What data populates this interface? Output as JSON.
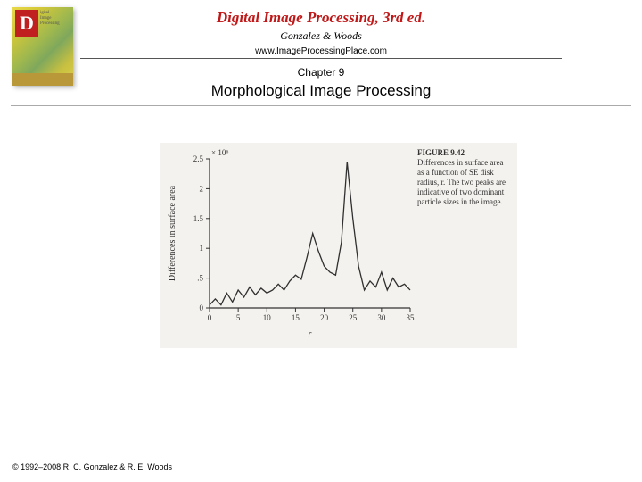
{
  "header": {
    "title": "Digital Image Processing, 3rd ed.",
    "authors": "Gonzalez & Woods",
    "url": "www.ImageProcessingPlace.com",
    "chapter": "Chapter 9",
    "subtitle": "Morphological Image Processing"
  },
  "cover": {
    "letter": "D",
    "small1": "igital",
    "small2": "Image",
    "small3": "Processing"
  },
  "figure": {
    "type": "line",
    "fignum": "FIGURE 9.42",
    "caption_text": "Differences in surface area as a function of SE disk radius, r. The two peaks are indicative of two dominant particle sizes in the image.",
    "ylabel": "Differences in surface area",
    "xlabel": "r",
    "y_multiplier": "× 10⁶",
    "xlim": [
      0,
      35
    ],
    "ylim": [
      0,
      2.5
    ],
    "xticks": [
      0,
      5,
      10,
      15,
      20,
      25,
      30,
      35
    ],
    "yticks": [
      0,
      0.5,
      1,
      1.5,
      2,
      2.5
    ],
    "ytick_labels": [
      "0",
      ".5",
      "1",
      "1.5",
      "2",
      "2.5"
    ],
    "line_color": "#303030",
    "axis_color": "#333333",
    "background_color": "#f4f2ee",
    "tick_fontsize": 9,
    "label_fontsize": 10,
    "data": [
      {
        "x": 0,
        "y": 0.05
      },
      {
        "x": 1,
        "y": 0.15
      },
      {
        "x": 2,
        "y": 0.05
      },
      {
        "x": 3,
        "y": 0.25
      },
      {
        "x": 4,
        "y": 0.1
      },
      {
        "x": 5,
        "y": 0.3
      },
      {
        "x": 6,
        "y": 0.18
      },
      {
        "x": 7,
        "y": 0.35
      },
      {
        "x": 8,
        "y": 0.22
      },
      {
        "x": 9,
        "y": 0.33
      },
      {
        "x": 10,
        "y": 0.25
      },
      {
        "x": 11,
        "y": 0.3
      },
      {
        "x": 12,
        "y": 0.4
      },
      {
        "x": 13,
        "y": 0.3
      },
      {
        "x": 14,
        "y": 0.45
      },
      {
        "x": 15,
        "y": 0.55
      },
      {
        "x": 16,
        "y": 0.48
      },
      {
        "x": 17,
        "y": 0.85
      },
      {
        "x": 18,
        "y": 1.25
      },
      {
        "x": 19,
        "y": 0.95
      },
      {
        "x": 20,
        "y": 0.7
      },
      {
        "x": 21,
        "y": 0.6
      },
      {
        "x": 22,
        "y": 0.55
      },
      {
        "x": 23,
        "y": 1.1
      },
      {
        "x": 24,
        "y": 2.45
      },
      {
        "x": 25,
        "y": 1.5
      },
      {
        "x": 26,
        "y": 0.7
      },
      {
        "x": 27,
        "y": 0.3
      },
      {
        "x": 28,
        "y": 0.45
      },
      {
        "x": 29,
        "y": 0.35
      },
      {
        "x": 30,
        "y": 0.6
      },
      {
        "x": 31,
        "y": 0.3
      },
      {
        "x": 32,
        "y": 0.5
      },
      {
        "x": 33,
        "y": 0.35
      },
      {
        "x": 34,
        "y": 0.4
      },
      {
        "x": 35,
        "y": 0.3
      }
    ]
  },
  "copyright": "© 1992–2008 R. C. Gonzalez & R. E. Woods"
}
